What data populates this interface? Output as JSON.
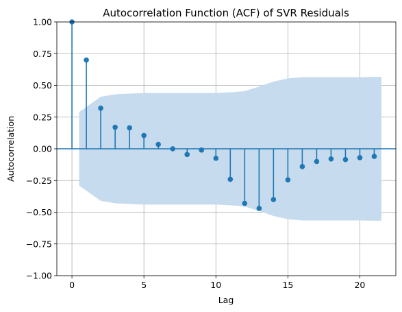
{
  "chart_data": {
    "type": "stem",
    "title": "Autocorrelation Function (ACF) of SVR Residuals",
    "xlabel": "Lag",
    "ylabel": "Autocorrelation",
    "xlim": [
      -1.05,
      22.5
    ],
    "ylim": [
      -1.0,
      1.0
    ],
    "xticks": [
      0,
      5,
      10,
      15,
      20
    ],
    "yticks": [
      -1.0,
      -0.75,
      -0.5,
      -0.25,
      0.0,
      0.25,
      0.5,
      0.75,
      1.0
    ],
    "xtick_labels": [
      "0",
      "5",
      "10",
      "15",
      "20"
    ],
    "ytick_labels": [
      "−1.00",
      "−0.75",
      "−0.50",
      "−0.25",
      "0.00",
      "0.25",
      "0.50",
      "0.75",
      "1.00"
    ],
    "grid": true,
    "lags": [
      0,
      1,
      2,
      3,
      4,
      5,
      6,
      7,
      8,
      9,
      10,
      11,
      12,
      13,
      14,
      15,
      16,
      17,
      18,
      19,
      20,
      21
    ],
    "values": [
      1.0,
      0.7,
      0.32,
      0.17,
      0.165,
      0.105,
      0.035,
      0.0,
      -0.045,
      -0.01,
      -0.075,
      -0.24,
      -0.43,
      -0.47,
      -0.4,
      -0.245,
      -0.14,
      -0.1,
      -0.08,
      -0.085,
      -0.07,
      -0.06
    ],
    "confidence_band": {
      "x": [
        0.5,
        1,
        2,
        3,
        4,
        5,
        6,
        7,
        8,
        9,
        10,
        11,
        12,
        13,
        14,
        15,
        16,
        17,
        18,
        19,
        20,
        21,
        21.5
      ],
      "upper": [
        0.29,
        0.33,
        0.41,
        0.43,
        0.435,
        0.44,
        0.44,
        0.44,
        0.44,
        0.44,
        0.44,
        0.445,
        0.455,
        0.49,
        0.53,
        0.555,
        0.565,
        0.565,
        0.565,
        0.565,
        0.565,
        0.567,
        0.567
      ]
    },
    "colors": {
      "stem": "#1f77b4",
      "band": "#c6dbed",
      "zero_line": "#1f77b4",
      "grid": "#b0b0b0"
    }
  }
}
